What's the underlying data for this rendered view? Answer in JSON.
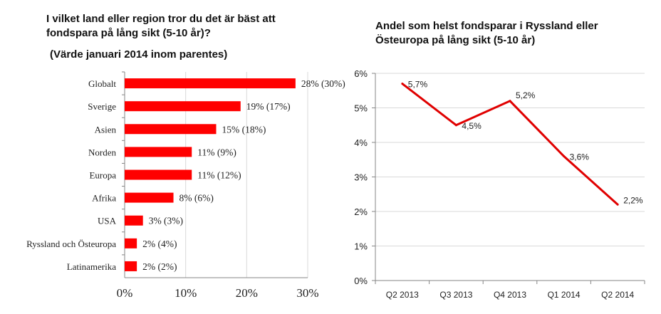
{
  "left_chart": {
    "title": "I vilket land eller region tror du det är bäst att\nfondspara på lång sikt (5-10 år)?",
    "subtitle": "(Värde januari 2014 inom parentes)"
  },
  "right_chart": {
    "title": "Andel som helst fondsparar i Ryssland eller\nÖsteuropa på lång sikt (5-10 år)"
  },
  "chart_data": [
    {
      "type": "bar",
      "orientation": "horizontal",
      "title": "I vilket land eller region tror du det är bäst att fondspara på lång sikt (5-10 år)?",
      "subtitle": "(Värde januari 2014 inom parentes)",
      "categories": [
        "Globalt",
        "Sverige",
        "Asien",
        "Norden",
        "Europa",
        "Afrika",
        "USA",
        "Ryssland och Östeuropa",
        "Latinamerika"
      ],
      "values": [
        28,
        19,
        15,
        11,
        11,
        8,
        3,
        2,
        2
      ],
      "data_labels": [
        "28% (30%)",
        "19% (17%)",
        "15% (18%)",
        "11% (9%)",
        "11% (12%)",
        "8% (6%)",
        "3% (3%)",
        "2% (4%)",
        "2% (2%)"
      ],
      "xlim": [
        0,
        30
      ],
      "xticks": [
        "0%",
        "10%",
        "20%",
        "30%"
      ],
      "grid": true,
      "color": "#ff0000"
    },
    {
      "type": "line",
      "title": "Andel som helst fondsparar i Ryssland eller Östeuropa på lång sikt (5-10 år)",
      "categories": [
        "Q2 2013",
        "Q3 2013",
        "Q4 2013",
        "Q1 2014",
        "Q2 2014"
      ],
      "values": [
        5.7,
        4.5,
        5.2,
        3.6,
        2.2
      ],
      "data_labels": [
        "5,7%",
        "4,5%",
        "5,2%",
        "3,6%",
        "2,2%"
      ],
      "ylim": [
        0,
        6
      ],
      "yticks": [
        "0%",
        "1%",
        "2%",
        "3%",
        "4%",
        "5%",
        "6%"
      ],
      "grid": true,
      "color": "#e00000"
    }
  ]
}
